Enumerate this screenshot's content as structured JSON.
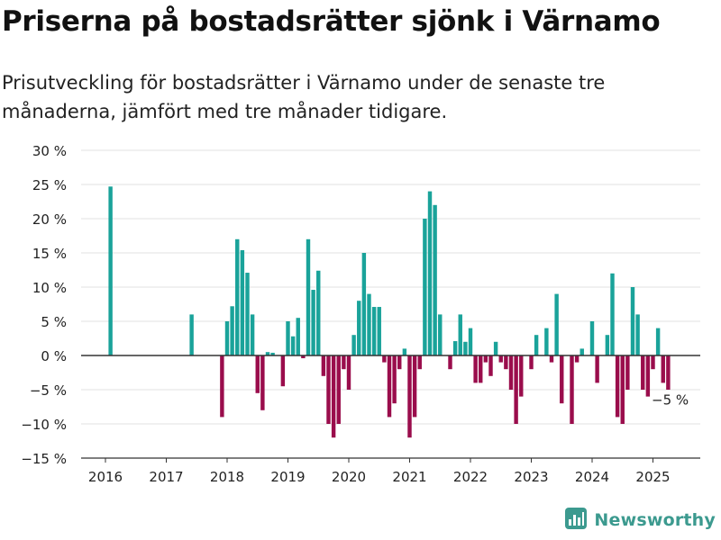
{
  "title": "Priserna på bostadsrätter sjönk i Värnamo",
  "subtitle": "Prisutveckling för bostadsrätter i Värnamo under de senaste tre månaderna, jämfört med tre månader tidigare.",
  "brand": {
    "name": "Newsworthy",
    "icon": "newsworthy-logo-icon"
  },
  "colors": {
    "positive": "#1aa39a",
    "negative": "#9a0d4c",
    "grid": "#e2e2e2",
    "zero_line": "#333333",
    "axis": "#333333"
  },
  "chart_data": {
    "type": "bar",
    "title": "Priserna på bostadsrätter sjönk i Värnamo",
    "xlabel": "",
    "ylabel": "",
    "unit": "%",
    "ylim": [
      -15,
      30
    ],
    "yticks": [
      30,
      25,
      20,
      15,
      10,
      5,
      0,
      -5,
      -10,
      -15
    ],
    "ytick_labels": [
      "30 %",
      "25 %",
      "20 %",
      "15 %",
      "10 %",
      "5 %",
      "0 %",
      "−5 %",
      "−10 %",
      "−15 %"
    ],
    "xticks": [
      "2016",
      "2017",
      "2018",
      "2019",
      "2020",
      "2021",
      "2022",
      "2023",
      "2024",
      "2025"
    ],
    "grid": true,
    "annotation": {
      "month": "2025-05",
      "text": "−5 %"
    },
    "series": [
      {
        "values": [
          [
            "2016-02",
            24.7
          ],
          [
            "2017-06",
            6.0
          ],
          [
            "2017-12",
            -9.0
          ],
          [
            "2018-01",
            5.0
          ],
          [
            "2018-02",
            7.2
          ],
          [
            "2018-03",
            17.0
          ],
          [
            "2018-04",
            15.4
          ],
          [
            "2018-05",
            12.1
          ],
          [
            "2018-06",
            6.0
          ],
          [
            "2018-07",
            -5.5
          ],
          [
            "2018-08",
            -8.0
          ],
          [
            "2018-09",
            0.5
          ],
          [
            "2018-10",
            0.4
          ],
          [
            "2018-12",
            -4.5
          ],
          [
            "2019-01",
            5.0
          ],
          [
            "2019-02",
            2.8
          ],
          [
            "2019-03",
            5.5
          ],
          [
            "2019-04",
            -0.4
          ],
          [
            "2019-05",
            17.0
          ],
          [
            "2019-06",
            9.6
          ],
          [
            "2019-07",
            12.4
          ],
          [
            "2019-08",
            -3.0
          ],
          [
            "2019-09",
            -10.0
          ],
          [
            "2019-10",
            -12.0
          ],
          [
            "2019-11",
            -10.0
          ],
          [
            "2019-12",
            -2.0
          ],
          [
            "2020-01",
            -5.0
          ],
          [
            "2020-02",
            3.0
          ],
          [
            "2020-03",
            8.0
          ],
          [
            "2020-04",
            15.0
          ],
          [
            "2020-05",
            9.0
          ],
          [
            "2020-06",
            7.1
          ],
          [
            "2020-07",
            7.1
          ],
          [
            "2020-08",
            -1.0
          ],
          [
            "2020-09",
            -9.0
          ],
          [
            "2020-10",
            -7.0
          ],
          [
            "2020-11",
            -2.0
          ],
          [
            "2020-12",
            1.0
          ],
          [
            "2021-01",
            -12.0
          ],
          [
            "2021-02",
            -9.0
          ],
          [
            "2021-03",
            -2.0
          ],
          [
            "2021-04",
            20.0
          ],
          [
            "2021-05",
            24.0
          ],
          [
            "2021-06",
            22.0
          ],
          [
            "2021-07",
            6.0
          ],
          [
            "2021-09",
            -2.0
          ],
          [
            "2021-10",
            2.1
          ],
          [
            "2021-11",
            6.0
          ],
          [
            "2021-12",
            2.0
          ],
          [
            "2022-01",
            4.0
          ],
          [
            "2022-02",
            -4.0
          ],
          [
            "2022-03",
            -4.0
          ],
          [
            "2022-04",
            -1.0
          ],
          [
            "2022-05",
            -3.0
          ],
          [
            "2022-06",
            2.0
          ],
          [
            "2022-07",
            -1.0
          ],
          [
            "2022-08",
            -2.0
          ],
          [
            "2022-09",
            -5.0
          ],
          [
            "2022-10",
            -10.0
          ],
          [
            "2022-11",
            -6.0
          ],
          [
            "2023-01",
            -2.0
          ],
          [
            "2023-02",
            3.0
          ],
          [
            "2023-04",
            4.0
          ],
          [
            "2023-05",
            -1.0
          ],
          [
            "2023-06",
            9.0
          ],
          [
            "2023-07",
            -7.0
          ],
          [
            "2023-09",
            -10.0
          ],
          [
            "2023-10",
            -1.0
          ],
          [
            "2023-11",
            1.0
          ],
          [
            "2024-01",
            5.0
          ],
          [
            "2024-02",
            -4.0
          ],
          [
            "2024-04",
            3.0
          ],
          [
            "2024-05",
            12.0
          ],
          [
            "2024-06",
            -9.0
          ],
          [
            "2024-07",
            -10.0
          ],
          [
            "2024-08",
            -5.0
          ],
          [
            "2024-09",
            10.0
          ],
          [
            "2024-10",
            6.0
          ],
          [
            "2024-11",
            -5.0
          ],
          [
            "2024-12",
            -6.0
          ],
          [
            "2025-01",
            -2.0
          ],
          [
            "2025-02",
            4.0
          ],
          [
            "2025-03",
            -4.0
          ],
          [
            "2025-04",
            -5.0
          ]
        ]
      }
    ]
  }
}
